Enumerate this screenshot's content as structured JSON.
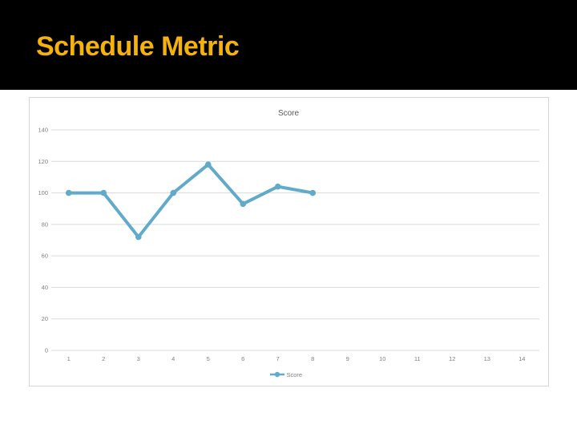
{
  "slide": {
    "title": "Schedule Metric",
    "title_color": "#F5B20A",
    "header_bg": "#000000",
    "body_bg": "#FFFFFF"
  },
  "chart_data": {
    "type": "line",
    "title": "Score",
    "categories": [
      "1",
      "2",
      "3",
      "4",
      "5",
      "6",
      "7",
      "8",
      "9",
      "10",
      "11",
      "12",
      "13",
      "14"
    ],
    "series": [
      {
        "name": "Score",
        "values": [
          100,
          100,
          72,
          100,
          118,
          93,
          104,
          100
        ]
      }
    ],
    "xlabel": "",
    "ylabel": "",
    "ylim": [
      0,
      140
    ],
    "ytick_step": 20,
    "grid": true,
    "legend_position": "bottom",
    "legend_label": "Score",
    "colors": {
      "line": "#62AAC9",
      "gridline": "#D9D9D9",
      "axis_label": "#7F7F7F",
      "chart_title": "#595959",
      "chart_border": "#D6D6D6",
      "chart_bg": "#FFFFFF"
    }
  }
}
